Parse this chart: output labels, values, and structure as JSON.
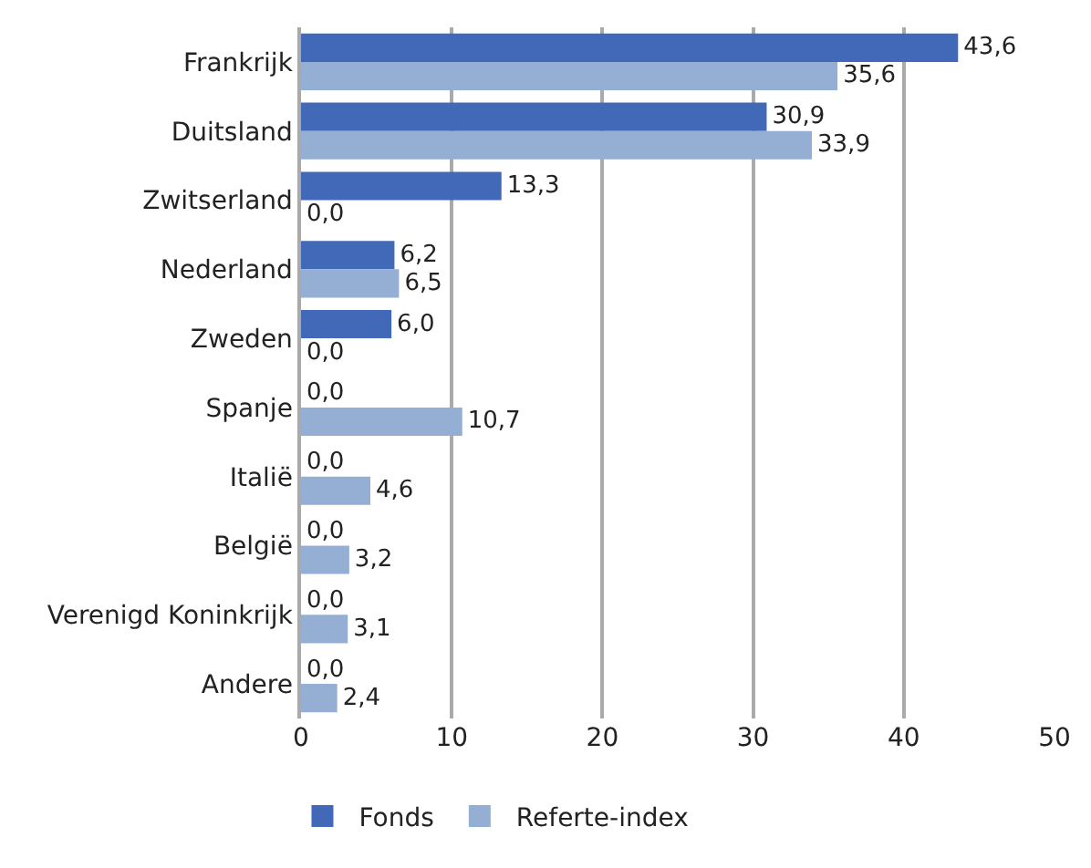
{
  "chart_data": {
    "type": "bar",
    "orientation": "horizontal",
    "categories": [
      "Frankrijk",
      "Duitsland",
      "Zwitserland",
      "Nederland",
      "Zweden",
      "Spanje",
      "Italië",
      "België",
      "Verenigd Koninkrijk",
      "Andere"
    ],
    "series": [
      {
        "name": "Fonds",
        "color": "#4169b8",
        "values": [
          43.6,
          30.9,
          13.3,
          6.2,
          6.0,
          0.0,
          0.0,
          0.0,
          0.0,
          0.0
        ],
        "value_labels": [
          "43,6",
          "30,9",
          "13,3",
          "6,2",
          "6,0",
          "0,0",
          "0,0",
          "0,0",
          "0,0",
          "0,0"
        ]
      },
      {
        "name": "Referte-index",
        "color": "#95aed3",
        "values": [
          35.6,
          33.9,
          0.0,
          6.5,
          0.0,
          10.7,
          4.6,
          3.2,
          3.1,
          2.4
        ],
        "value_labels": [
          "35,6",
          "33,9",
          "0,0",
          "6,5",
          "0,0",
          "10,7",
          "4,6",
          "3,2",
          "3,1",
          "2,4"
        ]
      }
    ],
    "xlim": [
      0,
      50
    ],
    "xticks": [
      0,
      10,
      20,
      30,
      40,
      50
    ],
    "grid": "x",
    "legend": "bottom left"
  }
}
